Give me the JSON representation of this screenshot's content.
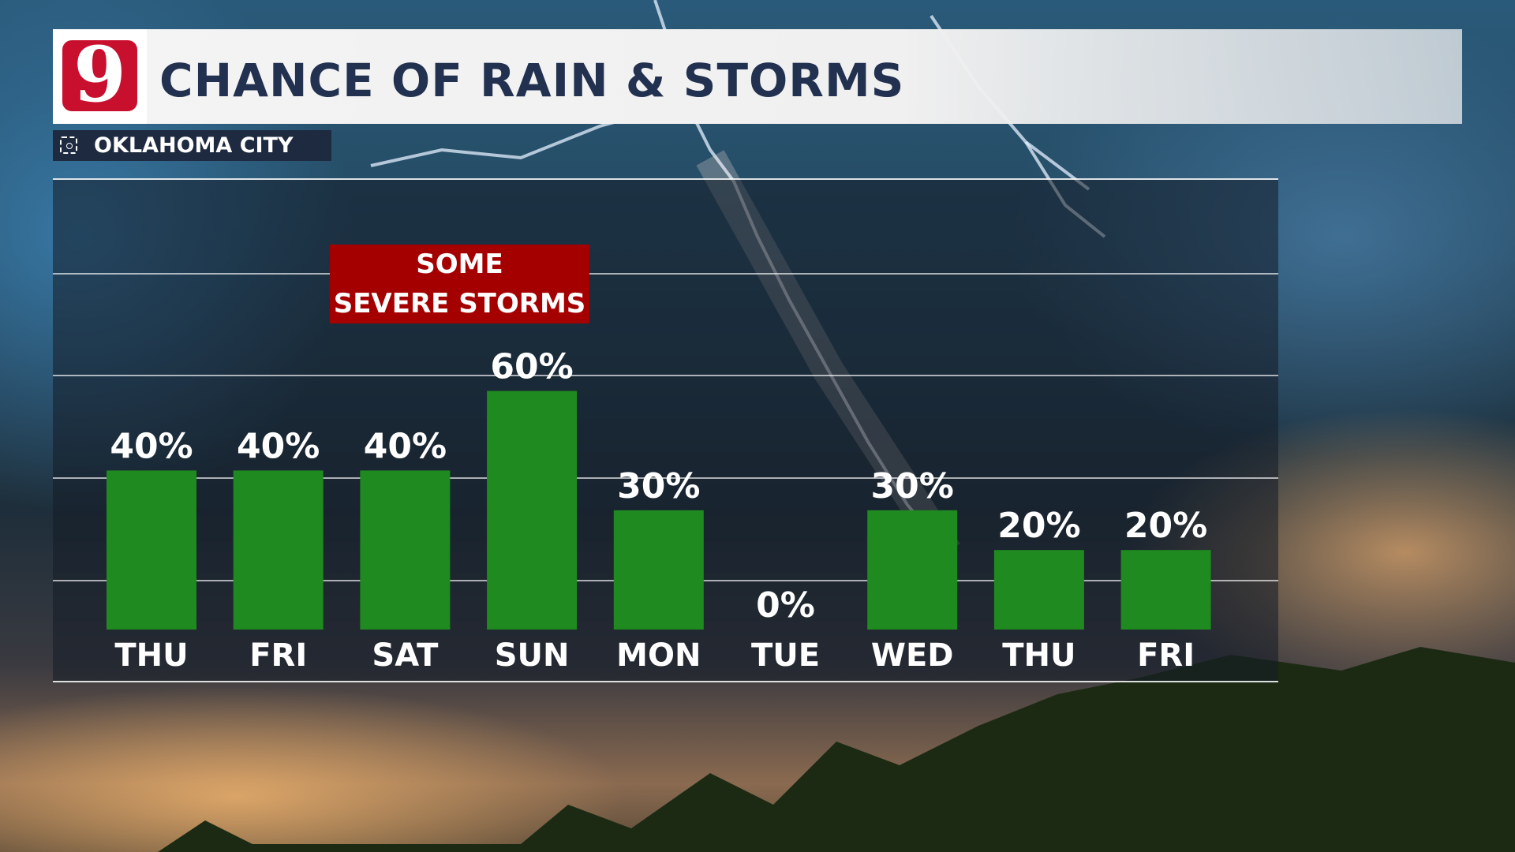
{
  "header": {
    "logo_text": "9",
    "title": "CHANCE OF RAIN & STORMS"
  },
  "location": {
    "icon": "location-target-icon",
    "label": "OKLAHOMA CITY"
  },
  "callout": {
    "line1": "SOME",
    "line2": "SEVERE STORMS",
    "color": "#a50000"
  },
  "chart_data": {
    "type": "bar",
    "title": "CHANCE OF RAIN & STORMS",
    "categories": [
      "THU",
      "FRI",
      "SAT",
      "SUN",
      "MON",
      "TUE",
      "WED",
      "THU",
      "FRI"
    ],
    "values": [
      40,
      40,
      40,
      60,
      30,
      0,
      30,
      20,
      20
    ],
    "value_labels": [
      "40%",
      "40%",
      "40%",
      "60%",
      "30%",
      "0%",
      "30%",
      "20%",
      "20%"
    ],
    "ylim": [
      0,
      100
    ],
    "grid": true,
    "bar_color": "#1f8a1f",
    "xlabel": "",
    "ylabel": ""
  }
}
